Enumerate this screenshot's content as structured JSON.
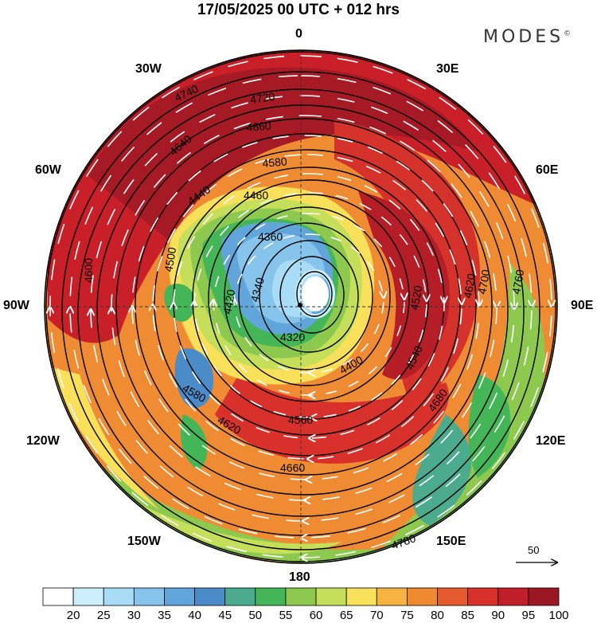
{
  "title": "17/05/2025  00 UTC  + 012 hrs",
  "brand": "MODES",
  "brand_mark": "©",
  "longitude_labels": {
    "n": "0",
    "ne": "30E",
    "ene": "60E",
    "e": "90E",
    "ese": "120E",
    "se": "150E",
    "s": "180",
    "sw": "150W",
    "wsw": "120W",
    "w": "90W",
    "wnw": "60W",
    "nw": "30W"
  },
  "contour_labels": [
    "4740",
    "4720",
    "4660",
    "4640",
    "4580",
    "4460",
    "4440",
    "4360",
    "4340",
    "4320",
    "4400",
    "4420",
    "4500",
    "4520",
    "4540",
    "4560",
    "4620",
    "4680",
    "4700",
    "4760",
    "4780",
    "4600",
    "4580",
    "4620",
    "4660"
  ],
  "colorbar": {
    "ticks": [
      "20",
      "25",
      "30",
      "35",
      "40",
      "45",
      "50",
      "55",
      "60",
      "65",
      "70",
      "75",
      "80",
      "85",
      "90",
      "95",
      "100"
    ],
    "colors": [
      "#ffffff",
      "#cdeefc",
      "#a9dcf6",
      "#86c4ec",
      "#62a5da",
      "#4a8bc8",
      "#4bab8c",
      "#44b657",
      "#8ec94f",
      "#c5df5b",
      "#f9e05b",
      "#f6b342",
      "#f08a31",
      "#e65b2d",
      "#d8302b",
      "#c01f2a",
      "#9b1724"
    ]
  },
  "wind_reference": "50"
}
